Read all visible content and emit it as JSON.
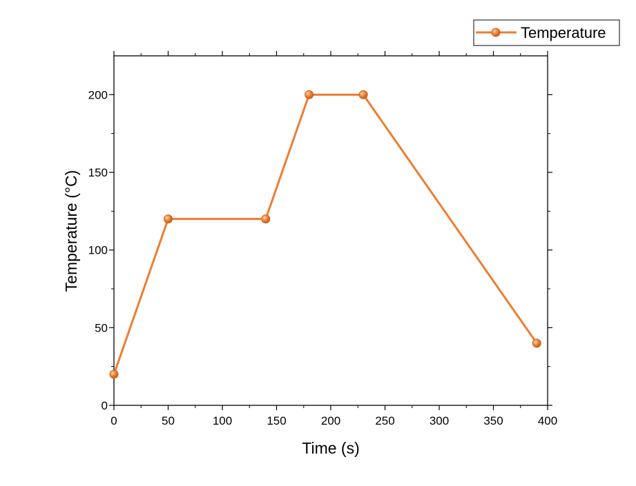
{
  "chart_data": {
    "type": "line",
    "xlabel": "Time (s)",
    "ylabel": "Temperature (°C)",
    "xlim": [
      0,
      400
    ],
    "ylim": [
      0,
      225
    ],
    "xticks": [
      0,
      50,
      100,
      150,
      200,
      250,
      300,
      350,
      400
    ],
    "yticks": [
      0,
      50,
      100,
      150,
      200
    ],
    "x_minor_step": 25,
    "y_minor_step": 25,
    "grid": false,
    "legend_position": "top-right",
    "series": [
      {
        "name": "Temperature",
        "color": "#ED7D31",
        "marker": "circle",
        "x": [
          0,
          50,
          140,
          180,
          230,
          390
        ],
        "y": [
          20,
          120,
          120,
          200,
          200,
          40
        ]
      }
    ]
  }
}
